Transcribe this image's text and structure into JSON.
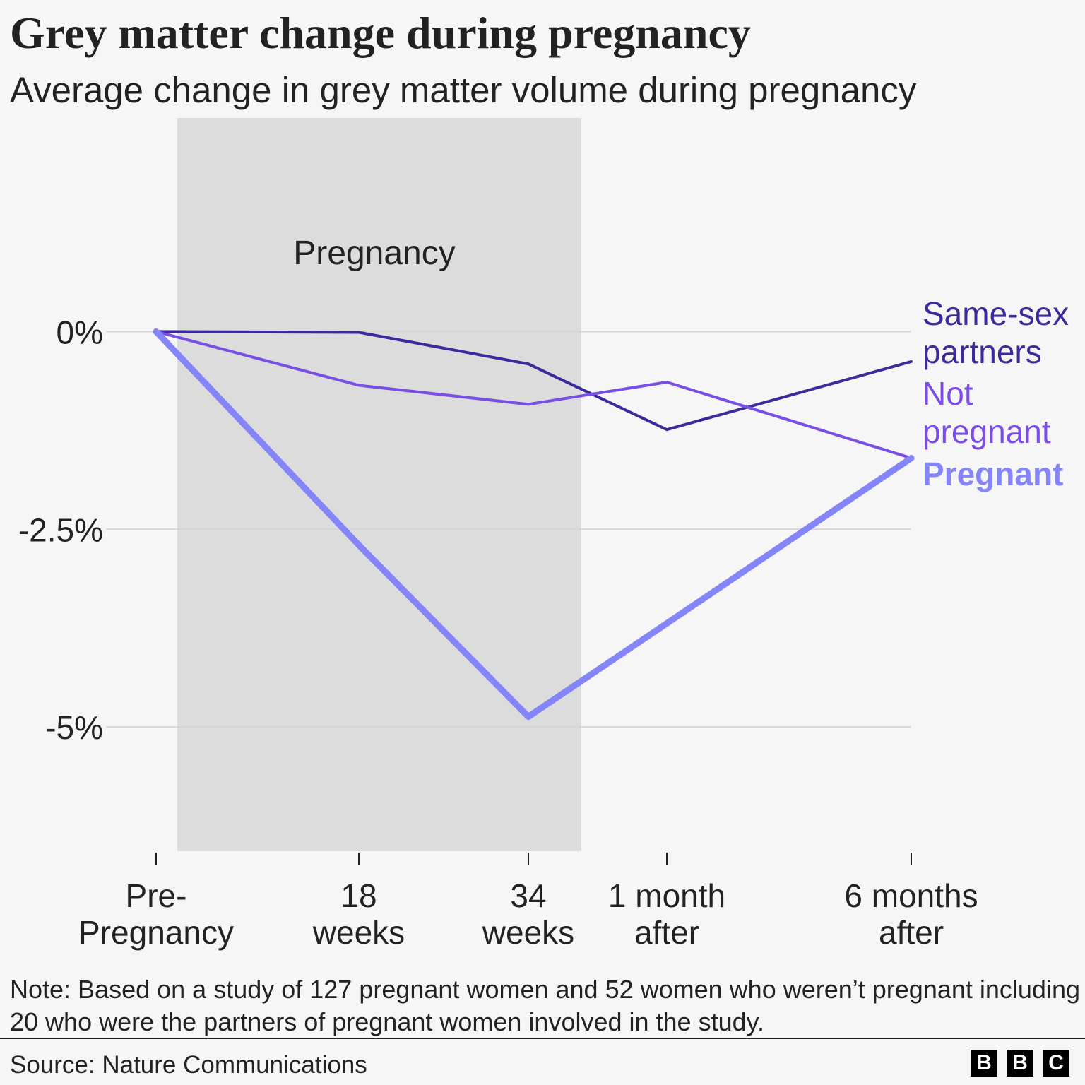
{
  "chart_data": {
    "type": "line",
    "title": "Grey matter change during pregnancy",
    "subtitle": "Average change in grey matter volume during pregnancy",
    "categories": [
      "Pre-\nPregnancy",
      "18\nweeks",
      "34\nweeks",
      "1 month\nafter",
      "6 months\nafter"
    ],
    "series": [
      {
        "name": "Same-sex partners",
        "color": "#3b2a9c",
        "values": [
          0,
          -0.01,
          -0.41,
          -1.24,
          -0.38
        ]
      },
      {
        "name": "Not pregnant",
        "color": "#7a4ee6",
        "values": [
          0,
          -0.68,
          -0.92,
          -0.64,
          -1.6
        ]
      },
      {
        "name": "Pregnant",
        "color": "#8585fa",
        "values": [
          0,
          -2.7,
          -4.87,
          -3.69,
          -1.6
        ]
      }
    ],
    "ylim": [
      -6.57,
      2.7
    ],
    "yticks": [
      {
        "value": 0,
        "label": "0%"
      },
      {
        "value": -2.5,
        "label": "-2.5%"
      },
      {
        "value": -5,
        "label": "-5%"
      }
    ],
    "grid": true,
    "annotation": "Pregnancy",
    "note": "Note: Based on a study of 127 pregnant women and 52 women who weren’t pregnant including 20 who were the partners of pregnant women involved in the study.",
    "source": "Source: Nature Communications",
    "logo": [
      "B",
      "B",
      "C"
    ]
  }
}
